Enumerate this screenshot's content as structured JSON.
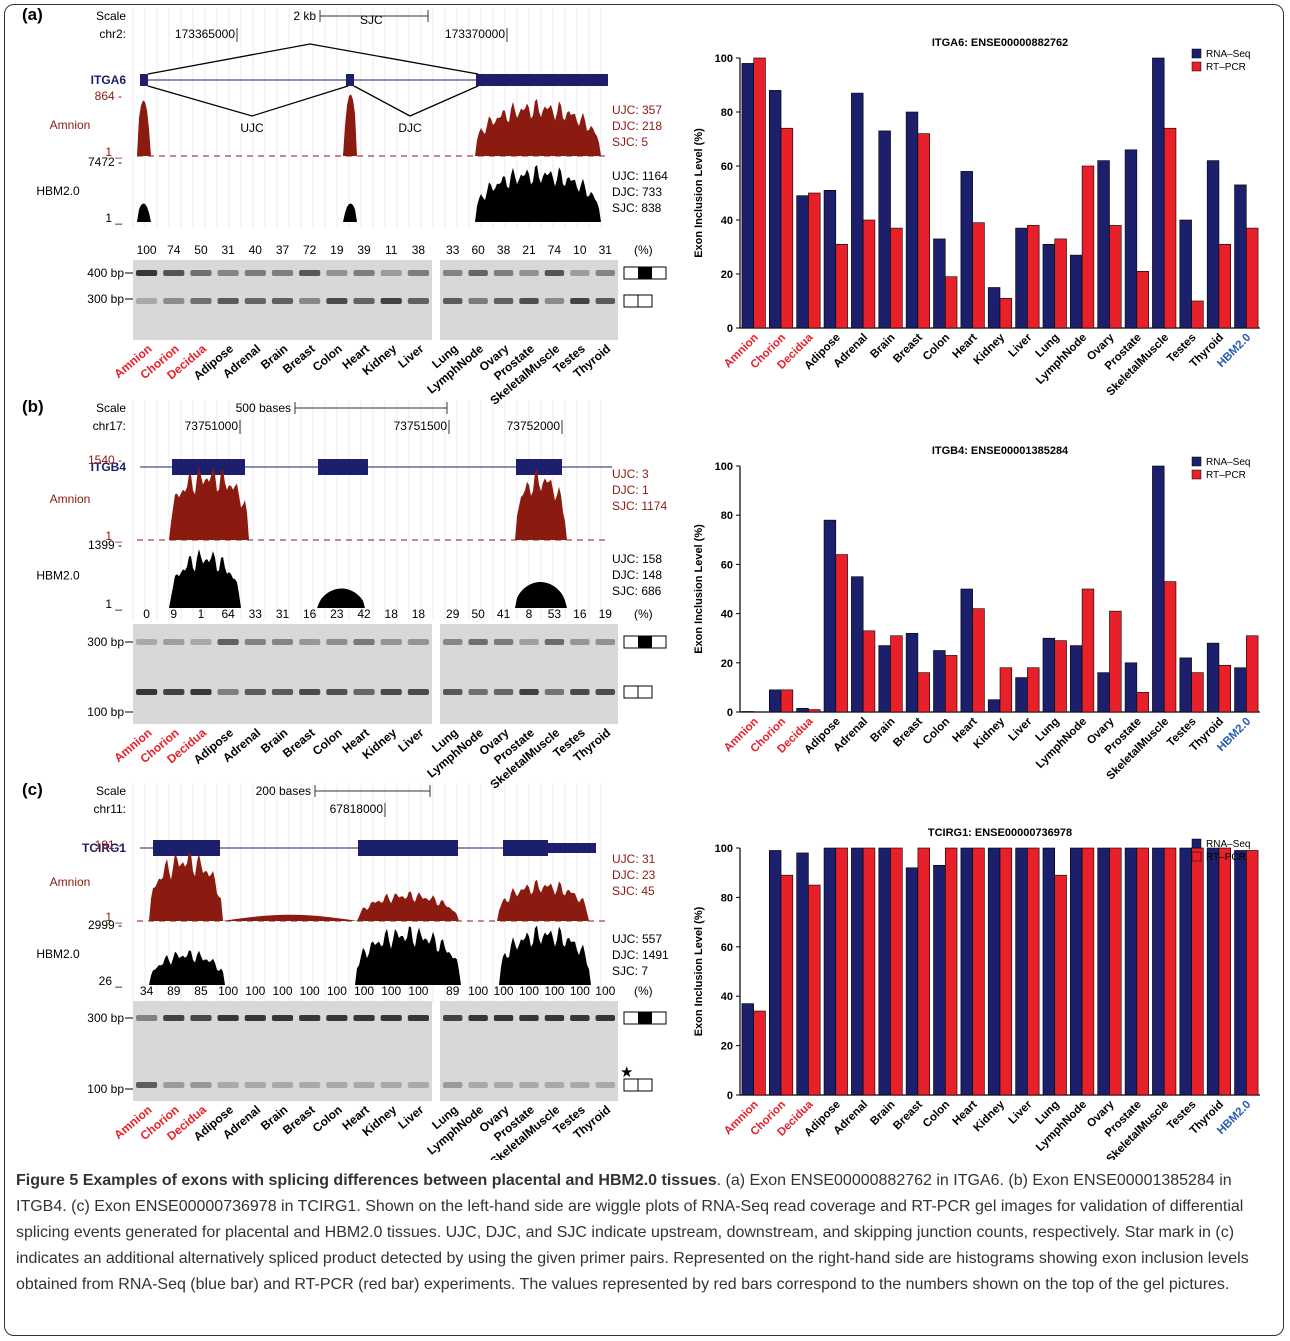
{
  "panels": [
    {
      "letter": "(a)",
      "browser": {
        "scale_label": "Scale",
        "scale_value": "2 kb",
        "chrom": "chr2:",
        "coord1": "173365000",
        "coord2": "173370000",
        "gene": "ITGA6",
        "sjc_label": "SJC",
        "ujc_label": "UJC",
        "djc_label": "DJC",
        "amnion_label": "Amnion",
        "amnion_max": "864 -",
        "amnion_min": "1 _",
        "amnion_counts": [
          "UJC: 357",
          "DJC: 218",
          "SJC: 5"
        ],
        "hbm_label": "HBM2.0",
        "hbm_max": "7472 -",
        "hbm_min": "1 _",
        "hbm_counts": [
          "UJC: 1164",
          "DJC: 733",
          "SJC: 838"
        ]
      },
      "gel": {
        "percents_left": [
          "100",
          "74",
          "50",
          "31",
          "40",
          "37",
          "72",
          "19",
          "39",
          "11",
          "38"
        ],
        "percents_right": [
          "33",
          "60",
          "38",
          "21",
          "74",
          "10",
          "31"
        ],
        "percent_unit": "(%)",
        "markers": [
          "400 bp",
          "300 bp"
        ],
        "star": ""
      },
      "chart_data": {
        "type": "bar",
        "title": "ITGA6: ENSE00000882762",
        "ylabel": "Exon Inclusion Level (%)",
        "ylim": [
          0,
          100
        ],
        "yticks": [
          "0",
          "20",
          "40",
          "60",
          "80",
          "100"
        ],
        "categories": [
          "Amnion",
          "Chorion",
          "Decidua",
          "Adipose",
          "Adrenal",
          "Brain",
          "Breast",
          "Colon",
          "Heart",
          "Kidney",
          "Liver",
          "Lung",
          "LymphNode",
          "Ovary",
          "Prostate",
          "SkeletalMuscle",
          "Testes",
          "Thyroid",
          "HBM2.0"
        ],
        "series": [
          {
            "name": "RNA–Seq",
            "color": "#1c1f6b",
            "values": [
              98,
              88,
              49,
              51,
              87,
              73,
              80,
              33,
              58,
              15,
              37,
              31,
              27,
              62,
              66,
              100,
              40,
              62,
              53
            ]
          },
          {
            "name": "RT–PCR",
            "color": "#e8202a",
            "values": [
              100,
              74,
              50,
              31,
              40,
              37,
              72,
              19,
              39,
              11,
              38,
              33,
              60,
              38,
              21,
              74,
              10,
              31,
              37
            ]
          }
        ]
      }
    },
    {
      "letter": "(b)",
      "browser": {
        "scale_label": "Scale",
        "scale_value": "500 bases",
        "chrom": "chr17:",
        "coord1": "73751000",
        "coord2": "73751500",
        "coord3": "73752000",
        "gene": "ITGB4",
        "amnion_label": "Amnion",
        "amnion_max": "1540 -",
        "amnion_min": "1 _",
        "amnion_counts": [
          "UJC: 3",
          "DJC: 1",
          "SJC: 1174"
        ],
        "hbm_label": "HBM2.0",
        "hbm_max": "1399 -",
        "hbm_min": "1 _",
        "hbm_counts": [
          "UJC: 158",
          "DJC: 148",
          "SJC: 686"
        ]
      },
      "gel": {
        "percents_left": [
          "0",
          "9",
          "1",
          "64",
          "33",
          "31",
          "16",
          "23",
          "42",
          "18",
          "18"
        ],
        "percents_right": [
          "29",
          "50",
          "41",
          "8",
          "53",
          "16",
          "19"
        ],
        "percent_unit": "(%)",
        "markers": [
          "300 bp",
          "100 bp"
        ],
        "star": ""
      },
      "chart_data": {
        "type": "bar",
        "title": "ITGB4: ENSE00001385284",
        "ylabel": "Exon Inclusion Level (%)",
        "ylim": [
          0,
          100
        ],
        "yticks": [
          "0",
          "20",
          "40",
          "60",
          "80",
          "100"
        ],
        "categories": [
          "Amnion",
          "Chorion",
          "Decidua",
          "Adipose",
          "Adrenal",
          "Brain",
          "Breast",
          "Colon",
          "Heart",
          "Kidney",
          "Liver",
          "Lung",
          "LymphNode",
          "Ovary",
          "Prostate",
          "SkeletalMuscle",
          "Testes",
          "Thyroid",
          "HBM2.0"
        ],
        "series": [
          {
            "name": "RNA–Seq",
            "color": "#1c1f6b",
            "values": [
              0.2,
              9,
              1.5,
              78,
              55,
              27,
              32,
              25,
              50,
              5,
              14,
              30,
              27,
              16,
              20,
              100,
              22,
              28,
              18
            ]
          },
          {
            "name": "RT–PCR",
            "color": "#e8202a",
            "values": [
              0,
              9,
              1,
              64,
              33,
              31,
              16,
              23,
              42,
              18,
              18,
              29,
              50,
              41,
              8,
              53,
              16,
              19,
              31
            ]
          }
        ]
      }
    },
    {
      "letter": "(c)",
      "browser": {
        "scale_label": "Scale",
        "scale_value": "200 bases",
        "chrom": "chr11:",
        "coord1": "67818000",
        "gene": "TCIRG1",
        "amnion_label": "Amnion",
        "amnion_max": "191 -",
        "amnion_min": "1 _",
        "amnion_counts": [
          "UJC: 31",
          "DJC: 23",
          "SJC: 45"
        ],
        "hbm_label": "HBM2.0",
        "hbm_max": "2999 -",
        "hbm_min": "26 _",
        "hbm_counts": [
          "UJC: 557",
          "DJC: 1491",
          "SJC: 7"
        ]
      },
      "gel": {
        "percents_left": [
          "34",
          "89",
          "85",
          "100",
          "100",
          "100",
          "100",
          "100",
          "100",
          "100",
          "100"
        ],
        "percents_right": [
          "89",
          "100",
          "100",
          "100",
          "100",
          "100",
          "100"
        ],
        "percent_unit": "(%)",
        "markers": [
          "300 bp",
          "100 bp"
        ],
        "star": "★"
      },
      "chart_data": {
        "type": "bar",
        "title": "TCIRG1: ENSE00000736978",
        "ylabel": "Exon Inclusion Level (%)",
        "ylim": [
          0,
          100
        ],
        "yticks": [
          "0",
          "20",
          "40",
          "60",
          "80",
          "100"
        ],
        "categories": [
          "Amnion",
          "Chorion",
          "Decidua",
          "Adipose",
          "Adrenal",
          "Brain",
          "Breast",
          "Colon",
          "Heart",
          "Kidney",
          "Liver",
          "Lung",
          "LymphNode",
          "Ovary",
          "Prostate",
          "SkeletalMuscle",
          "Testes",
          "Thyroid",
          "HBM2.0"
        ],
        "series": [
          {
            "name": "RNA–Seq",
            "color": "#1c1f6b",
            "values": [
              37,
              99,
              98,
              100,
              100,
              100,
              92,
              93,
              100,
              100,
              100,
              100,
              100,
              100,
              100,
              100,
              100,
              100,
              99
            ]
          },
          {
            "name": "RT–PCR",
            "color": "#e8202a",
            "values": [
              34,
              89,
              85,
              100,
              100,
              100,
              100,
              100,
              100,
              100,
              100,
              89,
              100,
              100,
              100,
              100,
              100,
              100,
              99
            ]
          }
        ]
      }
    }
  ],
  "gel_lanes_left": [
    "Amnion",
    "Chorion",
    "Decidua",
    "Adipose",
    "Adrenal",
    "Brain",
    "Breast",
    "Colon",
    "Heart",
    "Kidney",
    "Liver"
  ],
  "gel_lanes_right": [
    "Lung",
    "LymphNode",
    "Ovary",
    "Prostate",
    "SkeletalMuscle",
    "Testes",
    "Thyroid"
  ],
  "red_labels": [
    "Amnion",
    "Chorion",
    "Decidua"
  ],
  "blue_labels": [
    "HBM2.0"
  ],
  "colors": {
    "red_label": "#e8202a",
    "blue_label": "#2a5db0",
    "amnion_track": "#8b1a10",
    "hbm_track": "#000000",
    "gene_model": "#1c1f6b",
    "gel_bg": "#d8d8d8"
  },
  "caption": {
    "fig": "Figure 5",
    "title": "Examples of exons with splicing differences between placental and HBM2.0 tissues",
    "body": ". (a) Exon ENSE00000882762 in ITGA6. (b) Exon ENSE00001385284 in ITGB4. (c) Exon ENSE00000736978 in TCIRG1. Shown on the left-hand side are wiggle plots of RNA-Seq read coverage and RT-PCR gel images for validation of differential splicing events generated for placental and HBM2.0 tissues. UJC, DJC, and SJC indicate upstream, downstream, and skipping junction counts, respectively. Star mark in (c) indicates an additional alternatively spliced product detected by using the given primer pairs. Represented on the right-hand side are histograms showing exon inclusion levels obtained from RNA-Seq (blue bar) and RT-PCR (red bar) experiments. The values represented by red bars correspond to the numbers shown on the top of the gel pictures."
  }
}
